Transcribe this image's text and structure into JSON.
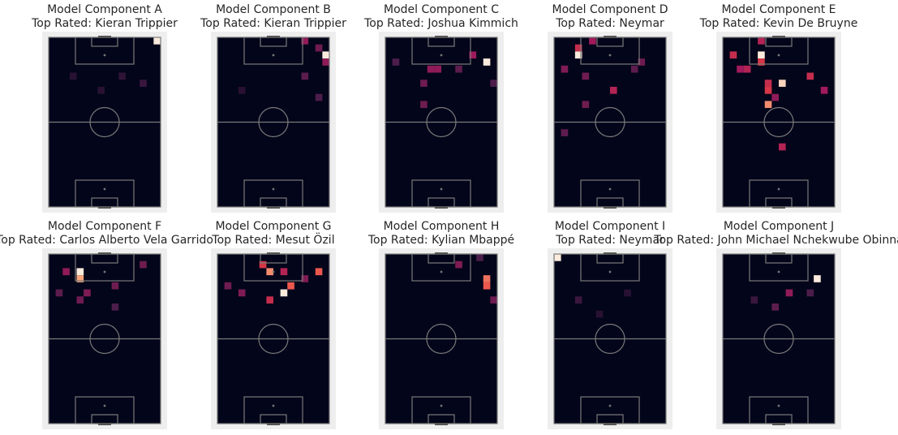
{
  "chart_data": [
    {
      "type": "heatmap",
      "title": "Model Component A",
      "subtitle": "Top Rated: Kieran Trippier",
      "xlim": [
        0,
        16
      ],
      "ylim": [
        0,
        24
      ],
      "x": [
        15,
        13,
        10,
        3,
        7
      ],
      "y": [
        0,
        6,
        5,
        5,
        7
      ],
      "values": [
        1.0,
        0.15,
        0.12,
        0.1,
        0.1
      ]
    },
    {
      "type": "heatmap",
      "title": "Model Component B",
      "subtitle": "Top Rated: Kieran Trippier",
      "xlim": [
        0,
        16
      ],
      "ylim": [
        0,
        24
      ],
      "x": [
        15,
        15,
        12,
        14,
        12,
        14,
        3
      ],
      "y": [
        2,
        3,
        0,
        1,
        5,
        8,
        7
      ],
      "values": [
        1.0,
        0.4,
        0.4,
        0.3,
        0.25,
        0.2,
        0.1
      ]
    },
    {
      "type": "heatmap",
      "title": "Model Component C",
      "subtitle": "Top Rated: Joshua Kimmich",
      "xlim": [
        0,
        16
      ],
      "ylim": [
        0,
        24
      ],
      "x": [
        14,
        12,
        6,
        7,
        5,
        5,
        10,
        15,
        1
      ],
      "y": [
        3,
        2,
        4,
        4,
        6,
        9,
        4,
        6,
        3
      ],
      "values": [
        1.0,
        0.45,
        0.4,
        0.4,
        0.3,
        0.3,
        0.25,
        0.2,
        0.2
      ]
    },
    {
      "type": "heatmap",
      "title": "Model Component D",
      "subtitle": "Top Rated: Neymar",
      "xlim": [
        0,
        16
      ],
      "ylim": [
        0,
        24
      ],
      "x": [
        3,
        3,
        5,
        8,
        1,
        4,
        12,
        1,
        4,
        11
      ],
      "y": [
        2,
        1,
        0,
        7,
        4,
        5,
        3,
        13,
        9,
        4
      ],
      "values": [
        1.0,
        0.55,
        0.45,
        0.5,
        0.35,
        0.3,
        0.3,
        0.25,
        0.3,
        0.25
      ]
    },
    {
      "type": "heatmap",
      "title": "Model Component E",
      "subtitle": "Top Rated: Kevin De Bruyne",
      "xlim": [
        0,
        16
      ],
      "ylim": [
        0,
        24
      ],
      "x": [
        5,
        8,
        6,
        6,
        6,
        5,
        1,
        3,
        12,
        5,
        8,
        14,
        2,
        7
      ],
      "y": [
        2,
        6,
        9,
        7,
        6,
        3,
        2,
        4,
        5,
        0,
        15,
        7,
        4,
        8
      ],
      "values": [
        1.0,
        0.95,
        0.8,
        0.6,
        0.55,
        0.6,
        0.55,
        0.5,
        0.55,
        0.5,
        0.5,
        0.45,
        0.45,
        0.4
      ]
    },
    {
      "type": "heatmap",
      "title": "Model Component F",
      "subtitle": "Top Rated: Carlos Alberto Vela Garrido",
      "xlim": [
        0,
        16
      ],
      "ylim": [
        0,
        24
      ],
      "x": [
        4,
        4,
        2,
        5,
        13,
        9,
        4,
        1,
        9
      ],
      "y": [
        2,
        3,
        2,
        5,
        1,
        4,
        6,
        5,
        7
      ],
      "values": [
        1.0,
        0.85,
        0.4,
        0.35,
        0.3,
        0.3,
        0.3,
        0.25,
        0.2
      ]
    },
    {
      "type": "heatmap",
      "title": "Model Component G",
      "subtitle": "Top Rated: Mesut Özil",
      "xlim": [
        0,
        16
      ],
      "ylim": [
        0,
        24
      ],
      "x": [
        9,
        7,
        10,
        14,
        6,
        9,
        7,
        3,
        12,
        1
      ],
      "y": [
        5,
        2,
        4,
        2,
        1,
        2,
        6,
        5,
        3,
        4
      ],
      "values": [
        1.0,
        0.8,
        0.7,
        0.7,
        0.6,
        0.5,
        0.55,
        0.35,
        0.35,
        0.3
      ]
    },
    {
      "type": "heatmap",
      "title": "Model Component H",
      "subtitle": "Top Rated: Kylian Mbappé",
      "xlim": [
        0,
        16
      ],
      "ylim": [
        0,
        24
      ],
      "x": [
        14,
        14,
        10,
        15,
        13
      ],
      "y": [
        3,
        4,
        1,
        6,
        0
      ],
      "values": [
        0.75,
        0.7,
        0.35,
        0.3,
        0.2
      ]
    },
    {
      "type": "heatmap",
      "title": "Model Component I",
      "subtitle": "Top Rated: Neymar",
      "xlim": [
        0,
        16
      ],
      "ylim": [
        0,
        24
      ],
      "x": [
        0,
        3,
        10,
        6
      ],
      "y": [
        0,
        6,
        5,
        8
      ],
      "values": [
        1.0,
        0.15,
        0.1,
        0.1
      ]
    },
    {
      "type": "heatmap",
      "title": "Model Component J",
      "subtitle": "Top Rated: John Michael Nchekwube Obinna",
      "xlim": [
        0,
        16
      ],
      "ylim": [
        0,
        24
      ],
      "x": [
        13,
        9,
        7,
        12,
        4
      ],
      "y": [
        3,
        5,
        7,
        5,
        6
      ],
      "values": [
        1.0,
        0.4,
        0.25,
        0.2,
        0.15
      ]
    }
  ]
}
